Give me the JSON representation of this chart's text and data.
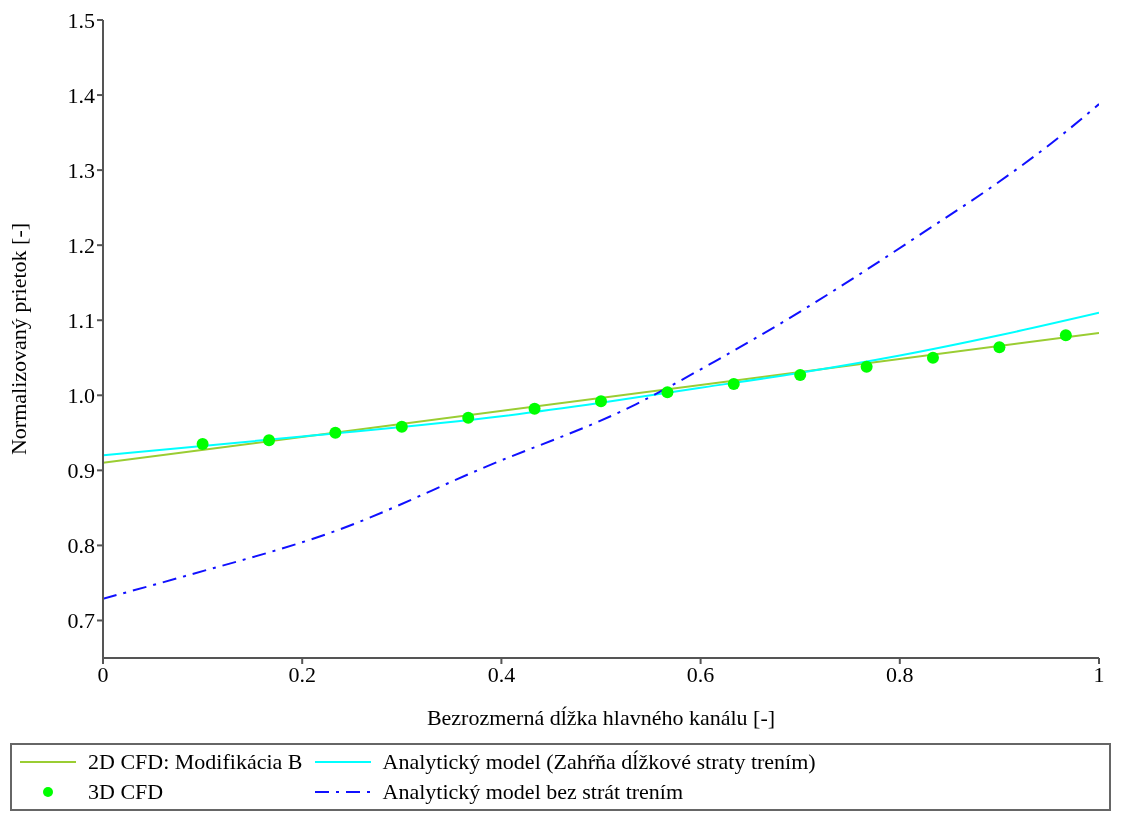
{
  "chart_data": {
    "type": "line",
    "xlabel": "Bezrozmerná dĺžka hlavného kanálu [-]",
    "ylabel": "Normalizovaný prietok [-]",
    "xlim": [
      0,
      1
    ],
    "xticks": [
      0,
      0.2,
      0.4,
      0.6,
      0.8,
      1
    ],
    "ylim": [
      0.65,
      1.5
    ],
    "yticks": [
      0.7,
      0.8,
      0.9,
      {
        "value": 1,
        "label": "1.0"
      },
      1.1,
      1.2,
      1.3,
      1.4,
      1.5
    ],
    "grid": false,
    "legend": "bottom",
    "series": [
      {
        "name": "2D CFD: Modifikácia B",
        "color": "#9acd32",
        "marker": "none",
        "line_style": "solid",
        "x": [
          0,
          1
        ],
        "values": [
          0.91,
          1.083
        ]
      },
      {
        "name": "3D CFD",
        "type": "scatter",
        "color": "#00ff00",
        "marker": "circle",
        "x": [
          0.1,
          0.1667,
          0.2333,
          0.3,
          0.3667,
          0.4333,
          0.5,
          0.5667,
          0.6333,
          0.7,
          0.7667,
          0.8333,
          0.9,
          0.9667
        ],
        "values": [
          0.935,
          0.94,
          0.95,
          0.958,
          0.97,
          0.982,
          0.992,
          1.004,
          1.015,
          1.027,
          1.038,
          1.05,
          1.064,
          1.08
        ]
      },
      {
        "name": "Analytický model (Zahŕňa dĺžkové straty trením)",
        "color": "#00ffff",
        "marker": "none",
        "line_style": "solid",
        "x": [
          0,
          0.2,
          0.4,
          0.5,
          0.6,
          0.7,
          0.8,
          0.9,
          1
        ],
        "values": [
          0.92,
          0.945,
          0.972,
          0.99,
          1.01,
          1.03,
          1.053,
          1.08,
          1.11
        ]
      },
      {
        "name": "Analytický model bez strát trením",
        "color": "#1010ff",
        "marker": "none",
        "line_style": "dashdot",
        "x": [
          0,
          0.082,
          0.237,
          0.383,
          0.535,
          0.614,
          0.687,
          0.757,
          0.826,
          0.896,
          0.961,
          1
        ],
        "values": [
          0.729,
          0.759,
          0.821,
          0.904,
          0.988,
          1.045,
          1.101,
          1.159,
          1.219,
          1.281,
          1.345,
          1.388
        ]
      }
    ]
  }
}
